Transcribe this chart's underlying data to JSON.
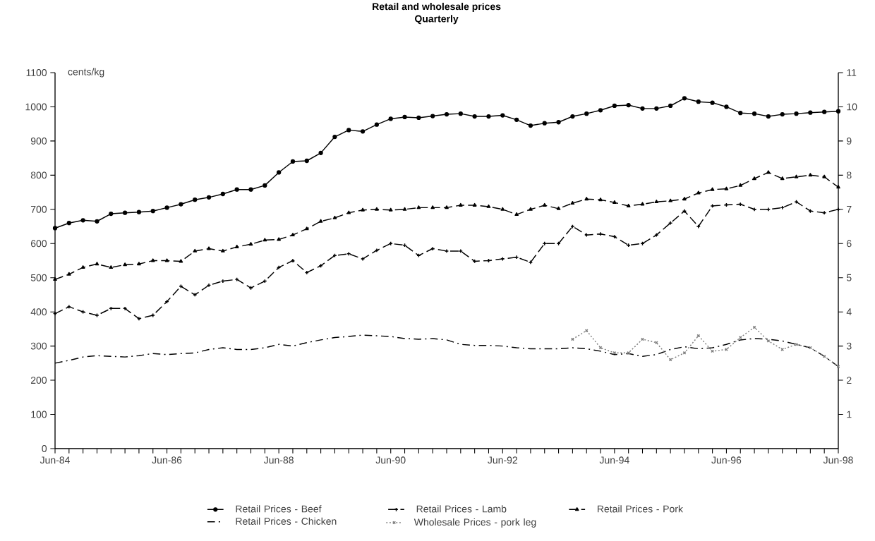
{
  "chart_data": {
    "type": "line",
    "title": "Retail and wholesale prices",
    "subtitle": "Quarterly",
    "ylabel": "cents/kg",
    "categories": [
      "Jun-84",
      null,
      null,
      null,
      null,
      null,
      null,
      null,
      "Jun-86",
      null,
      null,
      null,
      null,
      null,
      null,
      null,
      "Jun-88",
      null,
      null,
      null,
      null,
      null,
      null,
      null,
      "Jun-90",
      null,
      null,
      null,
      null,
      null,
      null,
      null,
      "Jun-92",
      null,
      null,
      null,
      null,
      null,
      null,
      null,
      "Jun-94",
      null,
      null,
      null,
      null,
      null,
      null,
      null,
      "Jun-96",
      null,
      null,
      null,
      null,
      null,
      null,
      null,
      "Jun-98"
    ],
    "ylim": [
      0,
      1100
    ],
    "yticks": [
      0,
      100,
      200,
      300,
      400,
      500,
      600,
      700,
      800,
      900,
      1000,
      1100
    ],
    "y2lim": [
      0,
      11
    ],
    "y2ticks": [
      1,
      2,
      3,
      4,
      5,
      6,
      7,
      8,
      9,
      10,
      11
    ],
    "legend": "bottom",
    "series": [
      {
        "name": "Retail Prices - Beef",
        "color": "#000000",
        "marker": "circle",
        "line_style": "solid",
        "values": [
          645,
          660,
          668,
          665,
          687,
          690,
          692,
          695,
          705,
          715,
          728,
          735,
          745,
          758,
          758,
          770,
          808,
          840,
          842,
          865,
          912,
          932,
          928,
          948,
          965,
          970,
          968,
          973,
          978,
          980,
          972,
          972,
          975,
          962,
          945,
          952,
          955,
          972,
          980,
          990,
          1003,
          1005,
          995,
          995,
          1003,
          1025,
          1015,
          1012,
          1000,
          982,
          980,
          972,
          978,
          980,
          983,
          985,
          987
        ]
      },
      {
        "name": "Retail Prices - Lamb",
        "color": "#000000",
        "marker": "plus",
        "line_style": "dashed",
        "values": [
          395,
          415,
          400,
          390,
          410,
          410,
          380,
          390,
          430,
          475,
          450,
          478,
          490,
          495,
          470,
          490,
          530,
          550,
          515,
          535,
          565,
          570,
          555,
          580,
          600,
          595,
          565,
          585,
          578,
          578,
          548,
          550,
          555,
          560,
          545,
          600,
          600,
          650,
          625,
          628,
          620,
          595,
          600,
          625,
          660,
          695,
          650,
          710,
          713,
          715,
          700,
          700,
          705,
          722,
          695,
          690,
          700
        ]
      },
      {
        "name": "Retail Prices - Pork",
        "color": "#000000",
        "marker": "triangle",
        "line_style": "dashed",
        "values": [
          495,
          510,
          530,
          540,
          530,
          538,
          540,
          550,
          550,
          548,
          578,
          585,
          578,
          590,
          598,
          610,
          612,
          625,
          643,
          665,
          675,
          690,
          698,
          700,
          698,
          700,
          705,
          705,
          705,
          712,
          712,
          708,
          700,
          685,
          700,
          712,
          702,
          718,
          730,
          728,
          720,
          710,
          715,
          722,
          725,
          730,
          748,
          758,
          760,
          770,
          790,
          808,
          790,
          795,
          800,
          795,
          765
        ]
      },
      {
        "name": "Retail Prices - Chicken",
        "color": "#000000",
        "marker": "none",
        "line_style": "dashdot",
        "values": [
          250,
          258,
          268,
          272,
          270,
          268,
          272,
          278,
          275,
          278,
          280,
          290,
          295,
          290,
          290,
          295,
          305,
          300,
          310,
          318,
          325,
          328,
          332,
          330,
          328,
          322,
          320,
          322,
          318,
          305,
          302,
          302,
          300,
          295,
          292,
          292,
          292,
          295,
          292,
          285,
          275,
          278,
          270,
          275,
          290,
          298,
          292,
          295,
          305,
          318,
          322,
          320,
          315,
          305,
          295,
          270,
          240
        ]
      },
      {
        "name": "Wholesale Prices - pork leg",
        "color": "#808080",
        "marker": "cross",
        "line_style": "dotted",
        "axis": "y2",
        "values": [
          null,
          null,
          null,
          null,
          null,
          null,
          null,
          null,
          null,
          null,
          null,
          null,
          null,
          null,
          null,
          null,
          null,
          null,
          null,
          null,
          null,
          null,
          null,
          null,
          null,
          null,
          null,
          null,
          null,
          null,
          null,
          null,
          null,
          null,
          null,
          null,
          null,
          3.2,
          3.45,
          2.95,
          2.8,
          2.8,
          3.2,
          3.1,
          2.6,
          2.8,
          3.3,
          2.85,
          2.9,
          3.25,
          3.55,
          3.15,
          2.9,
          3.05,
          2.95,
          2.7,
          2.4
        ]
      }
    ]
  }
}
